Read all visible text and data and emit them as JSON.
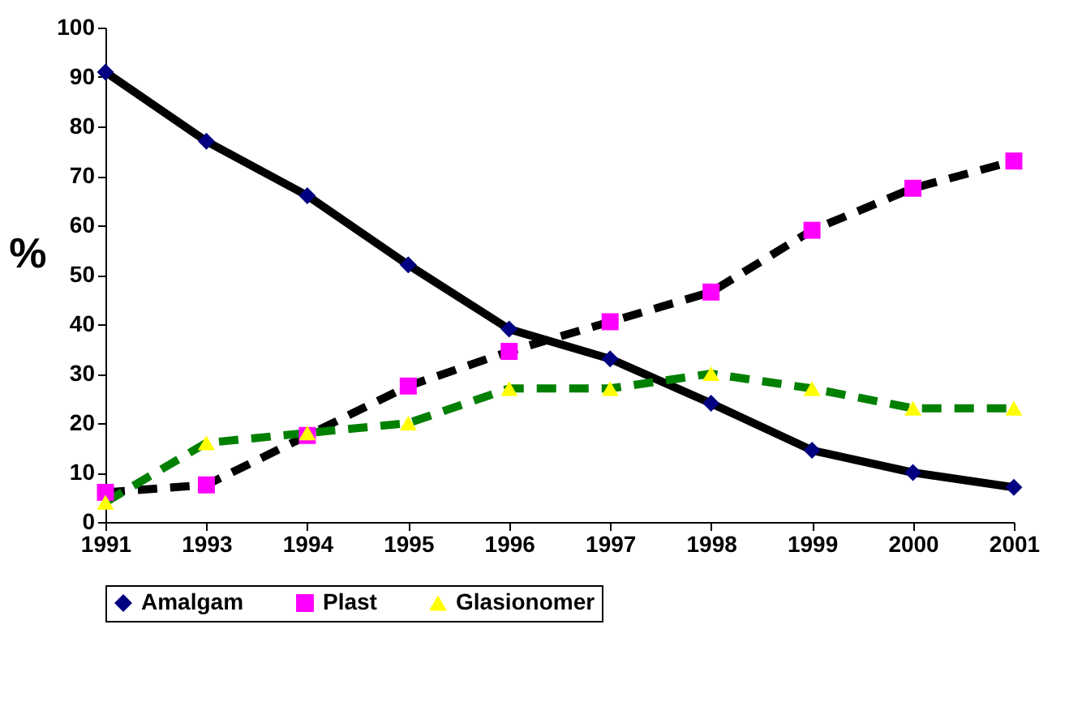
{
  "chart_data": {
    "type": "line",
    "ylabel": "%",
    "categories": [
      "1991",
      "1993",
      "1994",
      "1995",
      "1996",
      "1997",
      "1998",
      "1999",
      "2000",
      "2001"
    ],
    "ylim": [
      0,
      100
    ],
    "yticks": [
      0,
      10,
      20,
      30,
      40,
      50,
      60,
      70,
      80,
      90,
      100
    ],
    "legend": "bottom",
    "grid": false,
    "series": [
      {
        "name": "Amalgam",
        "color": "#000000",
        "colors": [
          "#000080",
          "#000080",
          "#000080",
          "#000080",
          "#000080",
          "#000080",
          "#000080",
          "#000080",
          "#000080",
          "#000080"
        ],
        "marker": "diamond",
        "line_style": "solid",
        "values": [
          91,
          77,
          66,
          52,
          39,
          33,
          24,
          14.5,
          10,
          7
        ]
      },
      {
        "name": "Plast",
        "color": "#000000",
        "colors": [
          "#ff00ff",
          "#ff00ff",
          "#ff00ff",
          "#ff00ff",
          "#ff00ff",
          "#ff00ff",
          "#ff00ff",
          "#ff00ff",
          "#ff00ff",
          "#ff00ff"
        ],
        "marker": "square",
        "line_style": "dashed",
        "values": [
          6,
          7.5,
          17.5,
          27.5,
          34.5,
          40.5,
          46.5,
          59,
          67.5,
          73
        ]
      },
      {
        "name": "Glasionomer",
        "color": "#008000",
        "colors": [
          "#ffff00",
          "#ffff00",
          "#ffff00",
          "#ffff00",
          "#ffff00",
          "#ffff00",
          "#ffff00",
          "#ffff00",
          "#ffff00",
          "#ffff00"
        ],
        "marker": "triangle",
        "line_style": "dashed",
        "values": [
          4,
          16,
          18,
          20,
          27,
          27,
          30,
          27,
          23,
          23
        ]
      }
    ]
  }
}
